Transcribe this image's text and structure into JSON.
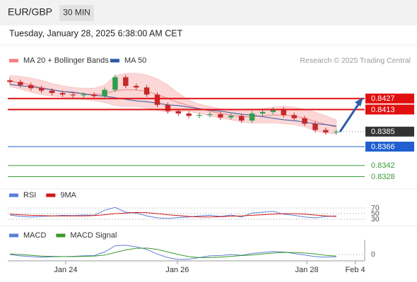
{
  "header": {
    "symbol": "EUR/GBP",
    "interval": "30 MIN",
    "timestamp": "Tuesday, January 28, 2025 6:38:00 AM CET"
  },
  "chart_data": {
    "type": "candlestick",
    "credit": "Research © 2025 Trading Central",
    "up_color": "#2e9e4f",
    "down_color": "#c62828",
    "xlim": [
      -0.2,
      33.7
    ],
    "xticks": [
      {
        "value": 5.3,
        "label": "Jan 24"
      },
      {
        "value": 15.9,
        "label": "Jan 26"
      },
      {
        "value": 28.2,
        "label": "Jan 28"
      },
      {
        "value": 32.8,
        "label": "Feb 4"
      }
    ],
    "ylim": [
      0.8315,
      0.8467
    ],
    "open": [
      0.845,
      0.8448,
      0.8444,
      0.844,
      0.8437,
      0.8434,
      0.8432,
      0.8431,
      0.8432,
      0.843,
      0.8438,
      0.8454,
      0.8443,
      0.8441,
      0.8432,
      0.8419,
      0.8411,
      0.8408,
      0.8405,
      0.8406,
      0.8407,
      0.8403,
      0.8405,
      0.8399,
      0.8408,
      0.841,
      0.8413,
      0.8406,
      0.8402,
      0.8395,
      0.8387,
      0.8384
    ],
    "high": [
      0.8453,
      0.8451,
      0.8447,
      0.8443,
      0.844,
      0.8437,
      0.8435,
      0.8435,
      0.8435,
      0.8441,
      0.8457,
      0.8457,
      0.8446,
      0.8444,
      0.8435,
      0.8422,
      0.8414,
      0.8411,
      0.8409,
      0.841,
      0.841,
      0.8408,
      0.8408,
      0.8411,
      0.8413,
      0.8416,
      0.8416,
      0.8409,
      0.8405,
      0.8398,
      0.839,
      0.8388
    ],
    "low": [
      0.8445,
      0.8441,
      0.8437,
      0.8434,
      0.8431,
      0.8429,
      0.8428,
      0.8428,
      0.8427,
      0.8427,
      0.8435,
      0.844,
      0.8438,
      0.8429,
      0.8416,
      0.8408,
      0.8405,
      0.8402,
      0.8402,
      0.8403,
      0.84,
      0.84,
      0.8396,
      0.8396,
      0.8405,
      0.8407,
      0.8403,
      0.8399,
      0.8392,
      0.8384,
      0.8381,
      0.8381
    ],
    "close": [
      0.8448,
      0.8444,
      0.844,
      0.8437,
      0.8434,
      0.8432,
      0.8431,
      0.8432,
      0.843,
      0.8438,
      0.8454,
      0.8443,
      0.8441,
      0.8432,
      0.8419,
      0.8411,
      0.8408,
      0.8405,
      0.8406,
      0.8407,
      0.8403,
      0.8405,
      0.8399,
      0.8408,
      0.841,
      0.8413,
      0.8406,
      0.8402,
      0.8395,
      0.8387,
      0.8384,
      0.8385
    ],
    "overlays": [
      {
        "name": "MA 20 + Bollinger Bands",
        "color": "#f08080",
        "band_color": "#f9c9c9",
        "values": [
          0.8449,
          0.8447,
          0.8444,
          0.8441,
          0.8438,
          0.8436,
          0.8434,
          0.8433,
          0.8432,
          0.8433,
          0.8437,
          0.8438,
          0.8438,
          0.8436,
          0.8432,
          0.8427,
          0.8422,
          0.8418,
          0.8414,
          0.8411,
          0.8408,
          0.8406,
          0.8404,
          0.8404,
          0.8405,
          0.8406,
          0.8406,
          0.8405,
          0.8402,
          0.8398,
          0.8394,
          0.8391
        ],
        "upper": [
          0.8456,
          0.8455,
          0.8453,
          0.845,
          0.8446,
          0.8443,
          0.8441,
          0.844,
          0.844,
          0.8444,
          0.8456,
          0.8459,
          0.8459,
          0.8457,
          0.8452,
          0.8444,
          0.8434,
          0.8425,
          0.842,
          0.8417,
          0.8414,
          0.8412,
          0.8411,
          0.8412,
          0.8414,
          0.8416,
          0.8417,
          0.8416,
          0.8413,
          0.841,
          0.8405,
          0.84
        ],
        "lower": [
          0.8442,
          0.8439,
          0.8435,
          0.8432,
          0.843,
          0.8429,
          0.8427,
          0.8426,
          0.8424,
          0.8422,
          0.8418,
          0.8417,
          0.8417,
          0.8415,
          0.8412,
          0.841,
          0.841,
          0.8411,
          0.8408,
          0.8405,
          0.8402,
          0.84,
          0.8397,
          0.8396,
          0.8396,
          0.8396,
          0.8395,
          0.8394,
          0.8391,
          0.8386,
          0.8383,
          0.8382
        ]
      },
      {
        "name": "MA 50",
        "color": "#2d5aa0",
        "values": [
          0.8445,
          0.8443,
          0.8442,
          0.844,
          0.8438,
          0.8436,
          0.8435,
          0.8433,
          0.8431,
          0.843,
          0.8428,
          0.8426,
          0.8424,
          0.8423,
          0.8421,
          0.8419,
          0.8418,
          0.8416,
          0.8414,
          0.8412,
          0.8411,
          0.8409,
          0.8407,
          0.8406,
          0.8404,
          0.8402,
          0.84,
          0.8399,
          0.8397,
          0.8395,
          0.8394,
          0.8392
        ]
      }
    ],
    "levels": [
      {
        "value": 0.8427,
        "color": "#e01010",
        "line": "solid",
        "boxed": true
      },
      {
        "value": 0.8413,
        "color": "#e01010",
        "line": "solid",
        "boxed": true
      },
      {
        "value": 0.8385,
        "color": "#333333",
        "line": "dotted",
        "boxed": true
      },
      {
        "value": 0.8366,
        "color": "#1f5fd0",
        "line": "solid",
        "boxed": true
      },
      {
        "value": 0.8342,
        "color": "#3a9a3a",
        "line": "solid",
        "boxed": false
      },
      {
        "value": 0.8328,
        "color": "#3a9a3a",
        "line": "solid",
        "boxed": false
      }
    ],
    "rsi": {
      "ylim": [
        20,
        80
      ],
      "yticks": [
        70,
        50,
        30
      ],
      "series": [
        {
          "name": "RSI",
          "color": "#5b7fd6",
          "values": [
            45,
            40,
            38,
            40,
            42,
            44,
            43,
            45,
            44,
            62,
            72,
            55,
            52,
            42,
            35,
            33,
            36,
            38,
            42,
            44,
            40,
            45,
            38,
            52,
            55,
            58,
            48,
            44,
            38,
            35,
            40,
            42
          ]
        },
        {
          "name": "9MA",
          "color": "#d01818",
          "values": [
            48,
            46,
            44,
            43,
            42,
            42,
            42,
            42,
            43,
            46,
            50,
            52,
            54,
            53,
            50,
            46,
            43,
            40,
            38,
            38,
            39,
            41,
            42,
            44,
            46,
            48,
            50,
            50,
            48,
            45,
            42,
            40
          ]
        }
      ]
    },
    "macd": {
      "ylim": [
        -0.0003,
        0.00085
      ],
      "yticks": [
        0
      ],
      "series": [
        {
          "name": "MACD",
          "color": "#5b7fd6",
          "values": [
            0,
            -5e-05,
            -8e-05,
            -0.0001,
            -9e-05,
            -8e-05,
            -7e-05,
            -5e-05,
            -4e-05,
            0.0001,
            0.00034,
            0.00036,
            0.0003,
            0.0002,
            2e-05,
            -0.00012,
            -0.00019,
            -0.00018,
            -0.00012,
            -5e-05,
            -4e-05,
            0,
            -3e-05,
            4e-05,
            8e-05,
            0.00012,
            0.0001,
            4e-05,
            -2e-05,
            -8e-05,
            -0.0001,
            -8e-05
          ]
        },
        {
          "name": "MACD Signal",
          "color": "#3a9a2a",
          "values": [
            2e-05,
            0,
            -3e-05,
            -6e-05,
            -7e-05,
            -8e-05,
            -8e-05,
            -7e-05,
            -6e-05,
            -2e-05,
            8e-05,
            0.00018,
            0.00024,
            0.00025,
            0.0002,
            0.0001,
            0,
            -8e-05,
            -0.00012,
            -0.00012,
            -0.0001,
            -7e-05,
            -4e-05,
            -2e-05,
            2e-05,
            6e-05,
            8e-05,
            8e-05,
            6e-05,
            2e-05,
            -3e-05,
            -6e-05
          ]
        }
      ]
    }
  }
}
